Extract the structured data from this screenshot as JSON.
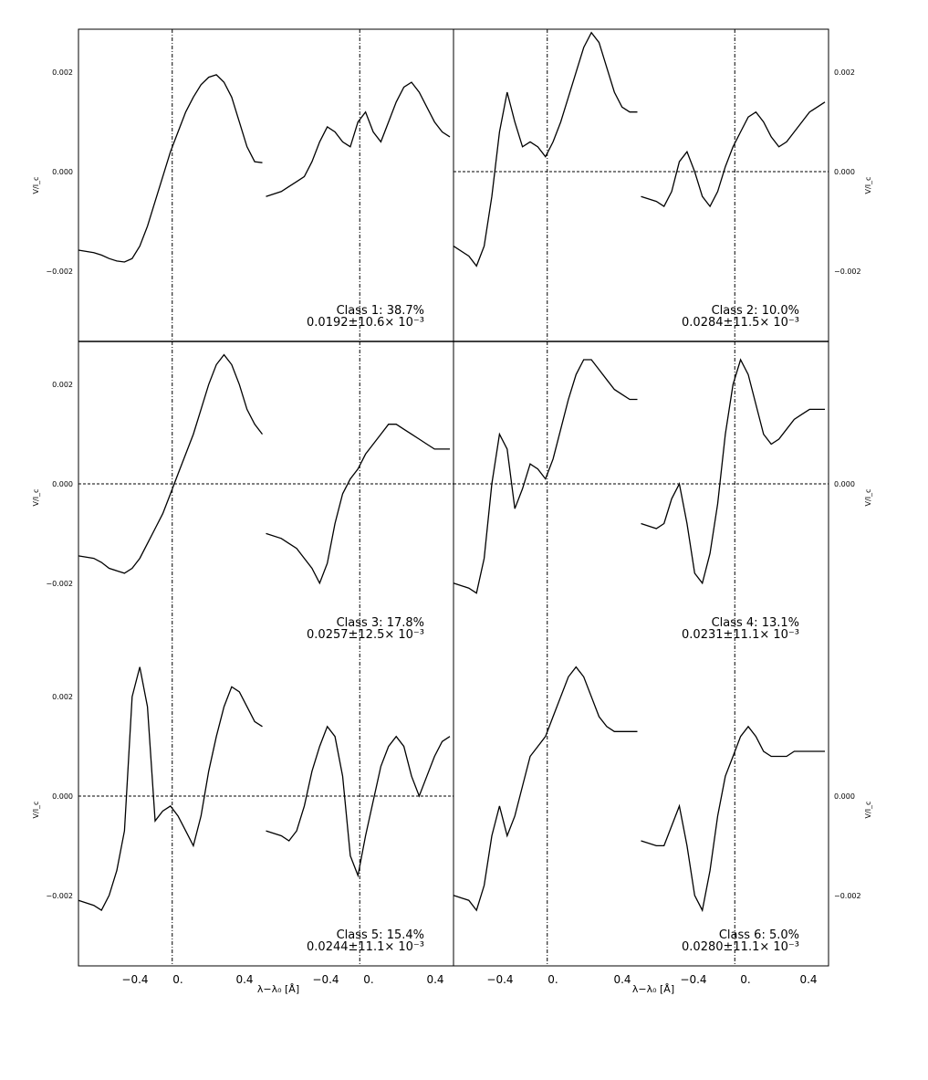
{
  "chart_data": {
    "type": "line",
    "x_axis": {
      "left_ticks": [
        "−0.4",
        "0.",
        "0.4",
        "−0.4",
        "0.",
        "0.4"
      ],
      "right_ticks": [
        "−0.4",
        "0.",
        "0.4",
        "−0.4",
        "0.",
        "0.4"
      ],
      "left_label": "λ−λ₀ [Å]",
      "right_label": "λ−λ₀ [Å]"
    },
    "panels": [
      {
        "id": "class-1",
        "side": "left",
        "y_label": "V/I_c",
        "y_ticks": [
          "0.002",
          "0.000",
          "−0.002"
        ],
        "ylim": [
          -0.0025,
          0.0025
        ],
        "zero_line": false,
        "class_label": "Class 1: 38.7%",
        "stat_label": "0.0192±10.6× 10⁻³",
        "x": [
          -0.6,
          -0.5,
          -0.45,
          -0.4,
          -0.35,
          -0.3,
          -0.25,
          -0.2,
          -0.15,
          -0.1,
          -0.05,
          0.0,
          0.05,
          0.1,
          0.15,
          0.2,
          0.25,
          0.3,
          0.35,
          0.4,
          0.45,
          0.5,
          0.55,
          0.6
        ],
        "series": [
          {
            "values": [
              -0.00158,
              -0.00163,
              -0.00168,
              -0.00175,
              -0.0018,
              -0.00182,
              -0.00175,
              -0.0015,
              -0.0011,
              -0.0006,
              -0.0001,
              0.0004,
              0.0008,
              0.0012,
              0.0015,
              0.00175,
              0.0019,
              0.00195,
              0.0018,
              0.0015,
              0.001,
              0.0005,
              0.0002,
              0.00018
            ]
          },
          {
            "values": [
              -0.0005,
              -0.0004,
              -0.0003,
              -0.0002,
              -0.0001,
              0.0002,
              0.0006,
              0.0009,
              0.0008,
              0.0006,
              0.0005,
              0.001,
              0.0012,
              0.0008,
              0.0006,
              0.001,
              0.0014,
              0.0017,
              0.0018,
              0.0016,
              0.0013,
              0.001,
              0.0008,
              0.0007
            ]
          }
        ]
      },
      {
        "id": "class-2",
        "side": "right",
        "y_label": "V/I_c",
        "y_ticks": [
          "0.002",
          "0.000",
          "−0.002"
        ],
        "ylim": [
          -0.0025,
          0.0025
        ],
        "zero_line": true,
        "class_label": "Class 2: 10.0%",
        "stat_label": "0.0284±11.5× 10⁻³",
        "x": [
          -0.6,
          -0.5,
          -0.45,
          -0.4,
          -0.35,
          -0.3,
          -0.25,
          -0.2,
          -0.15,
          -0.1,
          -0.05,
          0.0,
          0.05,
          0.1,
          0.15,
          0.2,
          0.25,
          0.3,
          0.35,
          0.4,
          0.45,
          0.5,
          0.55,
          0.6
        ],
        "series": [
          {
            "values": [
              -0.0015,
              -0.0017,
              -0.0019,
              -0.0015,
              -0.0005,
              0.0008,
              0.0016,
              0.001,
              0.0005,
              0.0006,
              0.0005,
              0.0003,
              0.0006,
              0.001,
              0.0015,
              0.002,
              0.0025,
              0.0028,
              0.0026,
              0.0021,
              0.0016,
              0.0013,
              0.0012,
              0.0012
            ]
          },
          {
            "values": [
              -0.0005,
              -0.0006,
              -0.0007,
              -0.0004,
              0.0002,
              0.0004,
              0.0,
              -0.0005,
              -0.0007,
              -0.0004,
              0.0001,
              0.0005,
              0.0008,
              0.0011,
              0.0012,
              0.001,
              0.0007,
              0.0005,
              0.0006,
              0.0008,
              0.001,
              0.0012,
              0.0013,
              0.0014
            ]
          }
        ]
      },
      {
        "id": "class-3",
        "side": "left",
        "y_label": "V/I_c",
        "y_ticks": [
          "0.002",
          "0.000",
          "−0.002"
        ],
        "ylim": [
          -0.0025,
          0.0025
        ],
        "zero_line": true,
        "class_label": "Class 3: 17.8%",
        "stat_label": "0.0257±12.5× 10⁻³",
        "x": [
          -0.6,
          -0.5,
          -0.45,
          -0.4,
          -0.35,
          -0.3,
          -0.25,
          -0.2,
          -0.15,
          -0.1,
          -0.05,
          0.0,
          0.05,
          0.1,
          0.15,
          0.2,
          0.25,
          0.3,
          0.35,
          0.4,
          0.45,
          0.5,
          0.55,
          0.6
        ],
        "series": [
          {
            "values": [
              -0.00145,
              -0.0015,
              -0.00158,
              -0.0017,
              -0.00175,
              -0.0018,
              -0.0017,
              -0.0015,
              -0.0012,
              -0.0009,
              -0.0006,
              -0.0002,
              0.0002,
              0.0006,
              0.001,
              0.0015,
              0.002,
              0.0024,
              0.0026,
              0.0024,
              0.002,
              0.0015,
              0.0012,
              0.001
            ]
          },
          {
            "values": [
              -0.001,
              -0.0011,
              -0.0012,
              -0.0013,
              -0.0015,
              -0.0017,
              -0.002,
              -0.0016,
              -0.0008,
              -0.0002,
              0.0001,
              0.0003,
              0.0006,
              0.0008,
              0.001,
              0.0012,
              0.0012,
              0.0011,
              0.001,
              0.0009,
              0.0008,
              0.0007,
              0.0007,
              0.0007
            ]
          }
        ]
      },
      {
        "id": "class-4",
        "side": "right",
        "y_label": "V/I_c",
        "y_ticks": [
          "0.000"
        ],
        "ylim": [
          -0.0025,
          0.0025
        ],
        "zero_line": true,
        "class_label": "Class 4: 13.1%",
        "stat_label": "0.0231±11.1× 10⁻³",
        "x": [
          -0.6,
          -0.5,
          -0.45,
          -0.4,
          -0.35,
          -0.3,
          -0.25,
          -0.2,
          -0.15,
          -0.1,
          -0.05,
          0.0,
          0.05,
          0.1,
          0.15,
          0.2,
          0.25,
          0.3,
          0.35,
          0.4,
          0.45,
          0.5,
          0.55,
          0.6
        ],
        "series": [
          {
            "values": [
              -0.002,
              -0.0021,
              -0.0022,
              -0.0015,
              0.0,
              0.001,
              0.0007,
              -0.0005,
              -0.0001,
              0.0004,
              0.0003,
              0.0001,
              0.0005,
              0.0011,
              0.0017,
              0.0022,
              0.0025,
              0.0025,
              0.0023,
              0.0021,
              0.0019,
              0.0018,
              0.0017,
              0.0017
            ]
          },
          {
            "values": [
              -0.0008,
              -0.0009,
              -0.0008,
              -0.0003,
              0.0,
              -0.0008,
              -0.0018,
              -0.002,
              -0.0014,
              -0.0004,
              0.001,
              0.002,
              0.0025,
              0.0022,
              0.0016,
              0.001,
              0.0008,
              0.0009,
              0.0011,
              0.0013,
              0.0014,
              0.0015,
              0.0015,
              0.0015
            ]
          }
        ]
      },
      {
        "id": "class-5",
        "side": "left",
        "y_label": "V/I_c",
        "y_ticks": [
          "0.002",
          "0.000",
          "−0.002"
        ],
        "ylim": [
          -0.0025,
          0.0025
        ],
        "zero_line": true,
        "class_label": "Class 5: 15.4%",
        "stat_label": "0.0244±11.1× 10⁻³",
        "x": [
          -0.6,
          -0.5,
          -0.45,
          -0.4,
          -0.35,
          -0.3,
          -0.25,
          -0.2,
          -0.15,
          -0.1,
          -0.05,
          0.0,
          0.05,
          0.1,
          0.15,
          0.2,
          0.25,
          0.3,
          0.35,
          0.4,
          0.45,
          0.5,
          0.55,
          0.6
        ],
        "series": [
          {
            "values": [
              -0.0021,
              -0.0022,
              -0.0023,
              -0.002,
              -0.0015,
              -0.0007,
              0.002,
              0.0026,
              0.0018,
              -0.0005,
              -0.0003,
              -0.0002,
              -0.0004,
              -0.0007,
              -0.001,
              -0.0004,
              0.0005,
              0.0012,
              0.0018,
              0.0022,
              0.0021,
              0.0018,
              0.0015,
              0.0014
            ]
          },
          {
            "values": [
              -0.0007,
              -0.0008,
              -0.0009,
              -0.0007,
              -0.0002,
              0.0005,
              0.001,
              0.0014,
              0.0012,
              0.0004,
              -0.0012,
              -0.0016,
              -0.0008,
              -0.0001,
              0.0006,
              0.001,
              0.0012,
              0.001,
              0.0004,
              0.0,
              0.0004,
              0.0008,
              0.0011,
              0.0012
            ]
          }
        ]
      },
      {
        "id": "class-6",
        "side": "right",
        "y_label": "V/I_c",
        "y_ticks": [
          "0.000",
          "−0.002"
        ],
        "ylim": [
          -0.0025,
          0.0025
        ],
        "zero_line": false,
        "class_label": "Class 6: 5.0%",
        "stat_label": "0.0280±11.1× 10⁻³",
        "x": [
          -0.6,
          -0.5,
          -0.45,
          -0.4,
          -0.35,
          -0.3,
          -0.25,
          -0.2,
          -0.15,
          -0.1,
          -0.05,
          0.0,
          0.05,
          0.1,
          0.15,
          0.2,
          0.25,
          0.3,
          0.35,
          0.4,
          0.45,
          0.5,
          0.55,
          0.6
        ],
        "series": [
          {
            "values": [
              -0.002,
              -0.0021,
              -0.0023,
              -0.0018,
              -0.0008,
              -0.0002,
              -0.0008,
              -0.0004,
              0.0002,
              0.0008,
              0.001,
              0.0012,
              0.0016,
              0.002,
              0.0024,
              0.0026,
              0.0024,
              0.002,
              0.0016,
              0.0014,
              0.0013,
              0.0013,
              0.0013,
              0.0013
            ]
          },
          {
            "values": [
              -0.0009,
              -0.001,
              -0.001,
              -0.0006,
              -0.0002,
              -0.001,
              -0.002,
              -0.0023,
              -0.0015,
              -0.0004,
              0.0004,
              0.0008,
              0.0012,
              0.0014,
              0.0012,
              0.0009,
              0.0008,
              0.0008,
              0.0008,
              0.0009,
              0.0009,
              0.0009,
              0.0009,
              0.0009
            ]
          }
        ]
      }
    ]
  }
}
